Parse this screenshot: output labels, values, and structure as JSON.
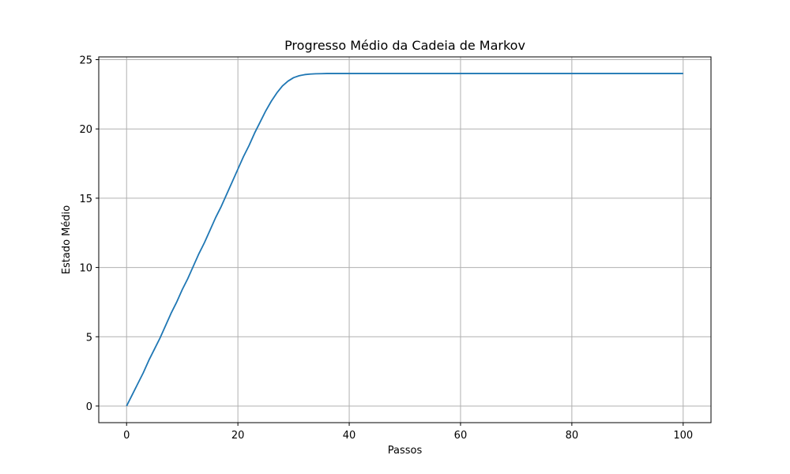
{
  "chart_data": {
    "type": "line",
    "title": "Progresso Médio da Cadeia de Markov",
    "xlabel": "Passos",
    "ylabel": "Estado Médio",
    "xlim": [
      -5,
      105
    ],
    "ylim": [
      -1.2,
      25.2
    ],
    "xticks": [
      0,
      20,
      40,
      60,
      80,
      100
    ],
    "yticks": [
      0,
      5,
      10,
      15,
      20,
      25
    ],
    "grid": true,
    "line_color": "#1f77b4",
    "series": [
      {
        "x": [
          0,
          1,
          2,
          3,
          4,
          5,
          6,
          7,
          8,
          9,
          10,
          11,
          12,
          13,
          14,
          15,
          16,
          17,
          18,
          19,
          20,
          21,
          22,
          23,
          24,
          25,
          26,
          27,
          28,
          29,
          30,
          31,
          32,
          33,
          34,
          35,
          36,
          37,
          38,
          39,
          40,
          41,
          42,
          43,
          44,
          45,
          46,
          47,
          48,
          49,
          50,
          51,
          52,
          53,
          54,
          55,
          56,
          57,
          58,
          59,
          60,
          61,
          62,
          63,
          64,
          65,
          66,
          67,
          68,
          69,
          70,
          71,
          72,
          73,
          74,
          75,
          76,
          77,
          78,
          79,
          80,
          81,
          82,
          83,
          84,
          85,
          86,
          87,
          88,
          89,
          90,
          91,
          92,
          93,
          94,
          95,
          96,
          97,
          98,
          99,
          100
        ],
        "y": [
          0,
          0.8,
          1.6,
          2.4,
          3.3,
          4.1,
          4.9,
          5.8,
          6.7,
          7.5,
          8.4,
          9.2,
          10.1,
          11.0,
          11.8,
          12.7,
          13.6,
          14.4,
          15.3,
          16.2,
          17.1,
          18.0,
          18.8,
          19.7,
          20.5,
          21.3,
          22.0,
          22.6,
          23.1,
          23.45,
          23.7,
          23.84,
          23.92,
          23.96,
          23.98,
          23.99,
          24.0,
          24.0,
          24.0,
          24.0,
          24.0,
          24.0,
          24.0,
          24.0,
          24.0,
          24.0,
          24.0,
          24.0,
          24.0,
          24.0,
          24.0,
          24.0,
          24.0,
          24.0,
          24.0,
          24.0,
          24.0,
          24.0,
          24.0,
          24.0,
          24.0,
          24.0,
          24.0,
          24.0,
          24.0,
          24.0,
          24.0,
          24.0,
          24.0,
          24.0,
          24.0,
          24.0,
          24.0,
          24.0,
          24.0,
          24.0,
          24.0,
          24.0,
          24.0,
          24.0,
          24.0,
          24.0,
          24.0,
          24.0,
          24.0,
          24.0,
          24.0,
          24.0,
          24.0,
          24.0,
          24.0,
          24.0,
          24.0,
          24.0,
          24.0,
          24.0,
          24.0,
          24.0,
          24.0,
          24.0,
          24.0
        ]
      }
    ]
  }
}
